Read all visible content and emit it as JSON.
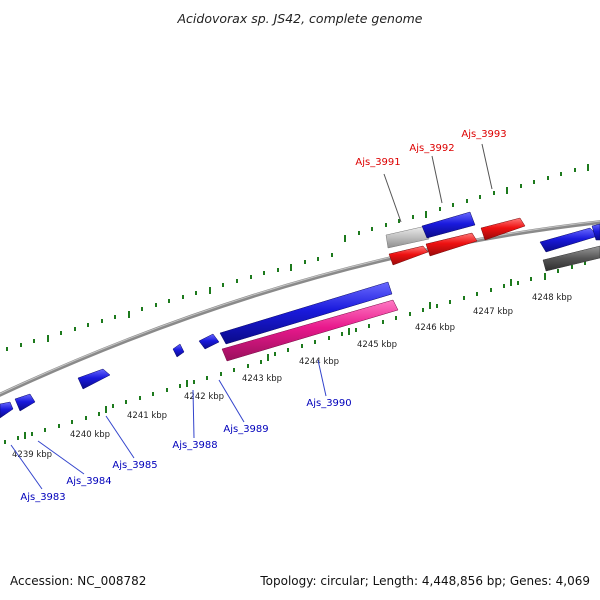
{
  "title": "Acidovorax sp. JS42, complete genome",
  "accession": "Accession: NC_008782",
  "summary": "Topology: circular; Length: 4,448,856 bp; Genes: 4,069",
  "colors": {
    "forward_gene": "#1a1add",
    "reverse_gene_pink": "#e8188c",
    "red_gene": "#ee1111",
    "grey_gene": "#bbbbbb",
    "dark_gene": "#555555",
    "backbone": "#888888",
    "tick": "#1d7a1d",
    "red_label": "#dd0000",
    "blue_label": "#0000bb"
  },
  "kbp_ticks": [
    "4239 kbp",
    "4240 kbp",
    "4241 kbp",
    "4242 kbp",
    "4243 kbp",
    "4244 kbp",
    "4245 kbp",
    "4246 kbp",
    "4247 kbp",
    "4248 kbp"
  ],
  "highlight_labels": [
    "Ajs_3991",
    "Ajs_3992",
    "Ajs_3993"
  ],
  "gene_labels": [
    "Ajs_3983",
    "Ajs_3984",
    "Ajs_3985",
    "Ajs_3988",
    "Ajs_3989",
    "Ajs_3990"
  ]
}
